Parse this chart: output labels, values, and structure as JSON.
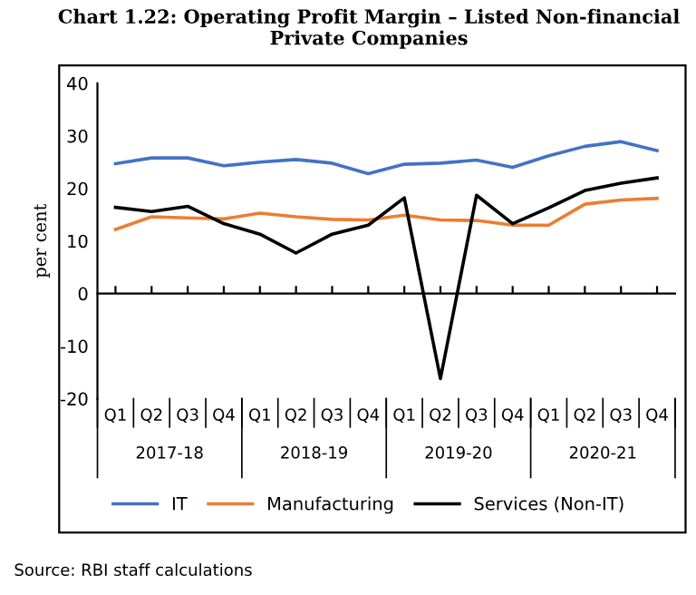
{
  "chart_data": {
    "type": "line",
    "title": "Chart 1.22: Operating Profit Margin – Listed Non-financial Private Companies",
    "ylabel": "per cent",
    "categories": [
      "Q1",
      "Q2",
      "Q3",
      "Q4",
      "Q1",
      "Q2",
      "Q3",
      "Q4",
      "Q1",
      "Q2",
      "Q3",
      "Q4",
      "Q1",
      "Q2",
      "Q3",
      "Q4"
    ],
    "series": [
      {
        "name": "IT",
        "color": "#4472c4",
        "values": [
          24.7,
          25.8,
          25.8,
          24.3,
          25.0,
          25.5,
          24.8,
          22.8,
          24.6,
          24.8,
          25.4,
          24.0,
          26.2,
          28.0,
          28.9,
          27.2
        ]
      },
      {
        "name": "Manufacturing",
        "color": "#ed7d31",
        "values": [
          12.2,
          14.6,
          14.4,
          14.2,
          15.3,
          14.6,
          14.1,
          14.0,
          14.9,
          14.0,
          13.9,
          13.0,
          13.0,
          17.0,
          17.8,
          18.1
        ]
      },
      {
        "name": "Services (Non-IT)",
        "color": "#000000",
        "values": [
          16.4,
          15.6,
          16.6,
          13.3,
          11.3,
          7.7,
          11.3,
          13.0,
          18.2,
          -16.2,
          18.7,
          13.3,
          16.3,
          19.6,
          21.0,
          22.0
        ]
      }
    ],
    "ylim": [
      -20,
      40
    ],
    "yticks": [
      -20,
      -10,
      0,
      10,
      20,
      30,
      40
    ],
    "legend": "bottom",
    "annotations": [
      "2017-18",
      "2018-19",
      "2019-20",
      "2020-21",
      "Source: RBI staff calculations"
    ]
  }
}
